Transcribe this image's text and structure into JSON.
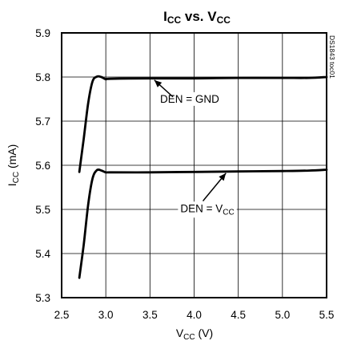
{
  "chart_data": {
    "type": "line",
    "title": {
      "main": "I",
      "sub1": "CC",
      "mid": " vs. V",
      "sub2": "CC"
    },
    "xlabel": {
      "main": "V",
      "sub": "CC",
      "rest": " (V)"
    },
    "ylabel": {
      "main": "I",
      "sub": "CC",
      "rest": " (mA)"
    },
    "xlim": [
      2.5,
      5.5
    ],
    "ylim": [
      5.3,
      5.9
    ],
    "xticks": [
      2.5,
      3.0,
      3.5,
      4.0,
      4.5,
      5.0,
      5.5
    ],
    "xtick_labels": [
      "2.5",
      "3.0",
      "3.5",
      "4.0",
      "4.5",
      "5.0",
      "5.5"
    ],
    "yticks": [
      5.3,
      5.4,
      5.5,
      5.6,
      5.7,
      5.8,
      5.9
    ],
    "ytick_labels": [
      "5.3",
      "5.4",
      "5.5",
      "5.6",
      "5.7",
      "5.8",
      "5.9"
    ],
    "grid": true,
    "figure_code": "DS1843 toc01",
    "series": [
      {
        "name": "DEN = GND",
        "x": [
          2.7,
          2.75,
          2.8,
          2.85,
          2.9,
          2.95,
          3.0,
          3.05,
          3.5,
          4.0,
          4.5,
          5.0,
          5.3,
          5.5
        ],
        "y": [
          5.585,
          5.66,
          5.74,
          5.79,
          5.801,
          5.8,
          5.795,
          5.796,
          5.797,
          5.797,
          5.798,
          5.798,
          5.798,
          5.8
        ]
      },
      {
        "name": "DEN = VCC",
        "x": [
          2.7,
          2.75,
          2.8,
          2.85,
          2.9,
          2.95,
          3.0,
          3.05,
          3.5,
          4.0,
          4.5,
          5.0,
          5.3,
          5.5
        ],
        "y": [
          5.345,
          5.42,
          5.51,
          5.57,
          5.589,
          5.588,
          5.584,
          5.584,
          5.584,
          5.585,
          5.586,
          5.587,
          5.588,
          5.59
        ]
      }
    ],
    "annotations": [
      {
        "label": {
          "main": "DEN = GND"
        },
        "text_at": [
          3.95,
          5.742
        ],
        "arrow_from": [
          3.76,
          5.755
        ],
        "arrow_to": [
          3.55,
          5.793
        ]
      },
      {
        "label": {
          "main": "DEN = V",
          "sub": "CC"
        },
        "text_at": [
          4.15,
          5.494
        ],
        "arrow_from": [
          4.1,
          5.519
        ],
        "arrow_to": [
          4.36,
          5.582
        ]
      }
    ]
  }
}
